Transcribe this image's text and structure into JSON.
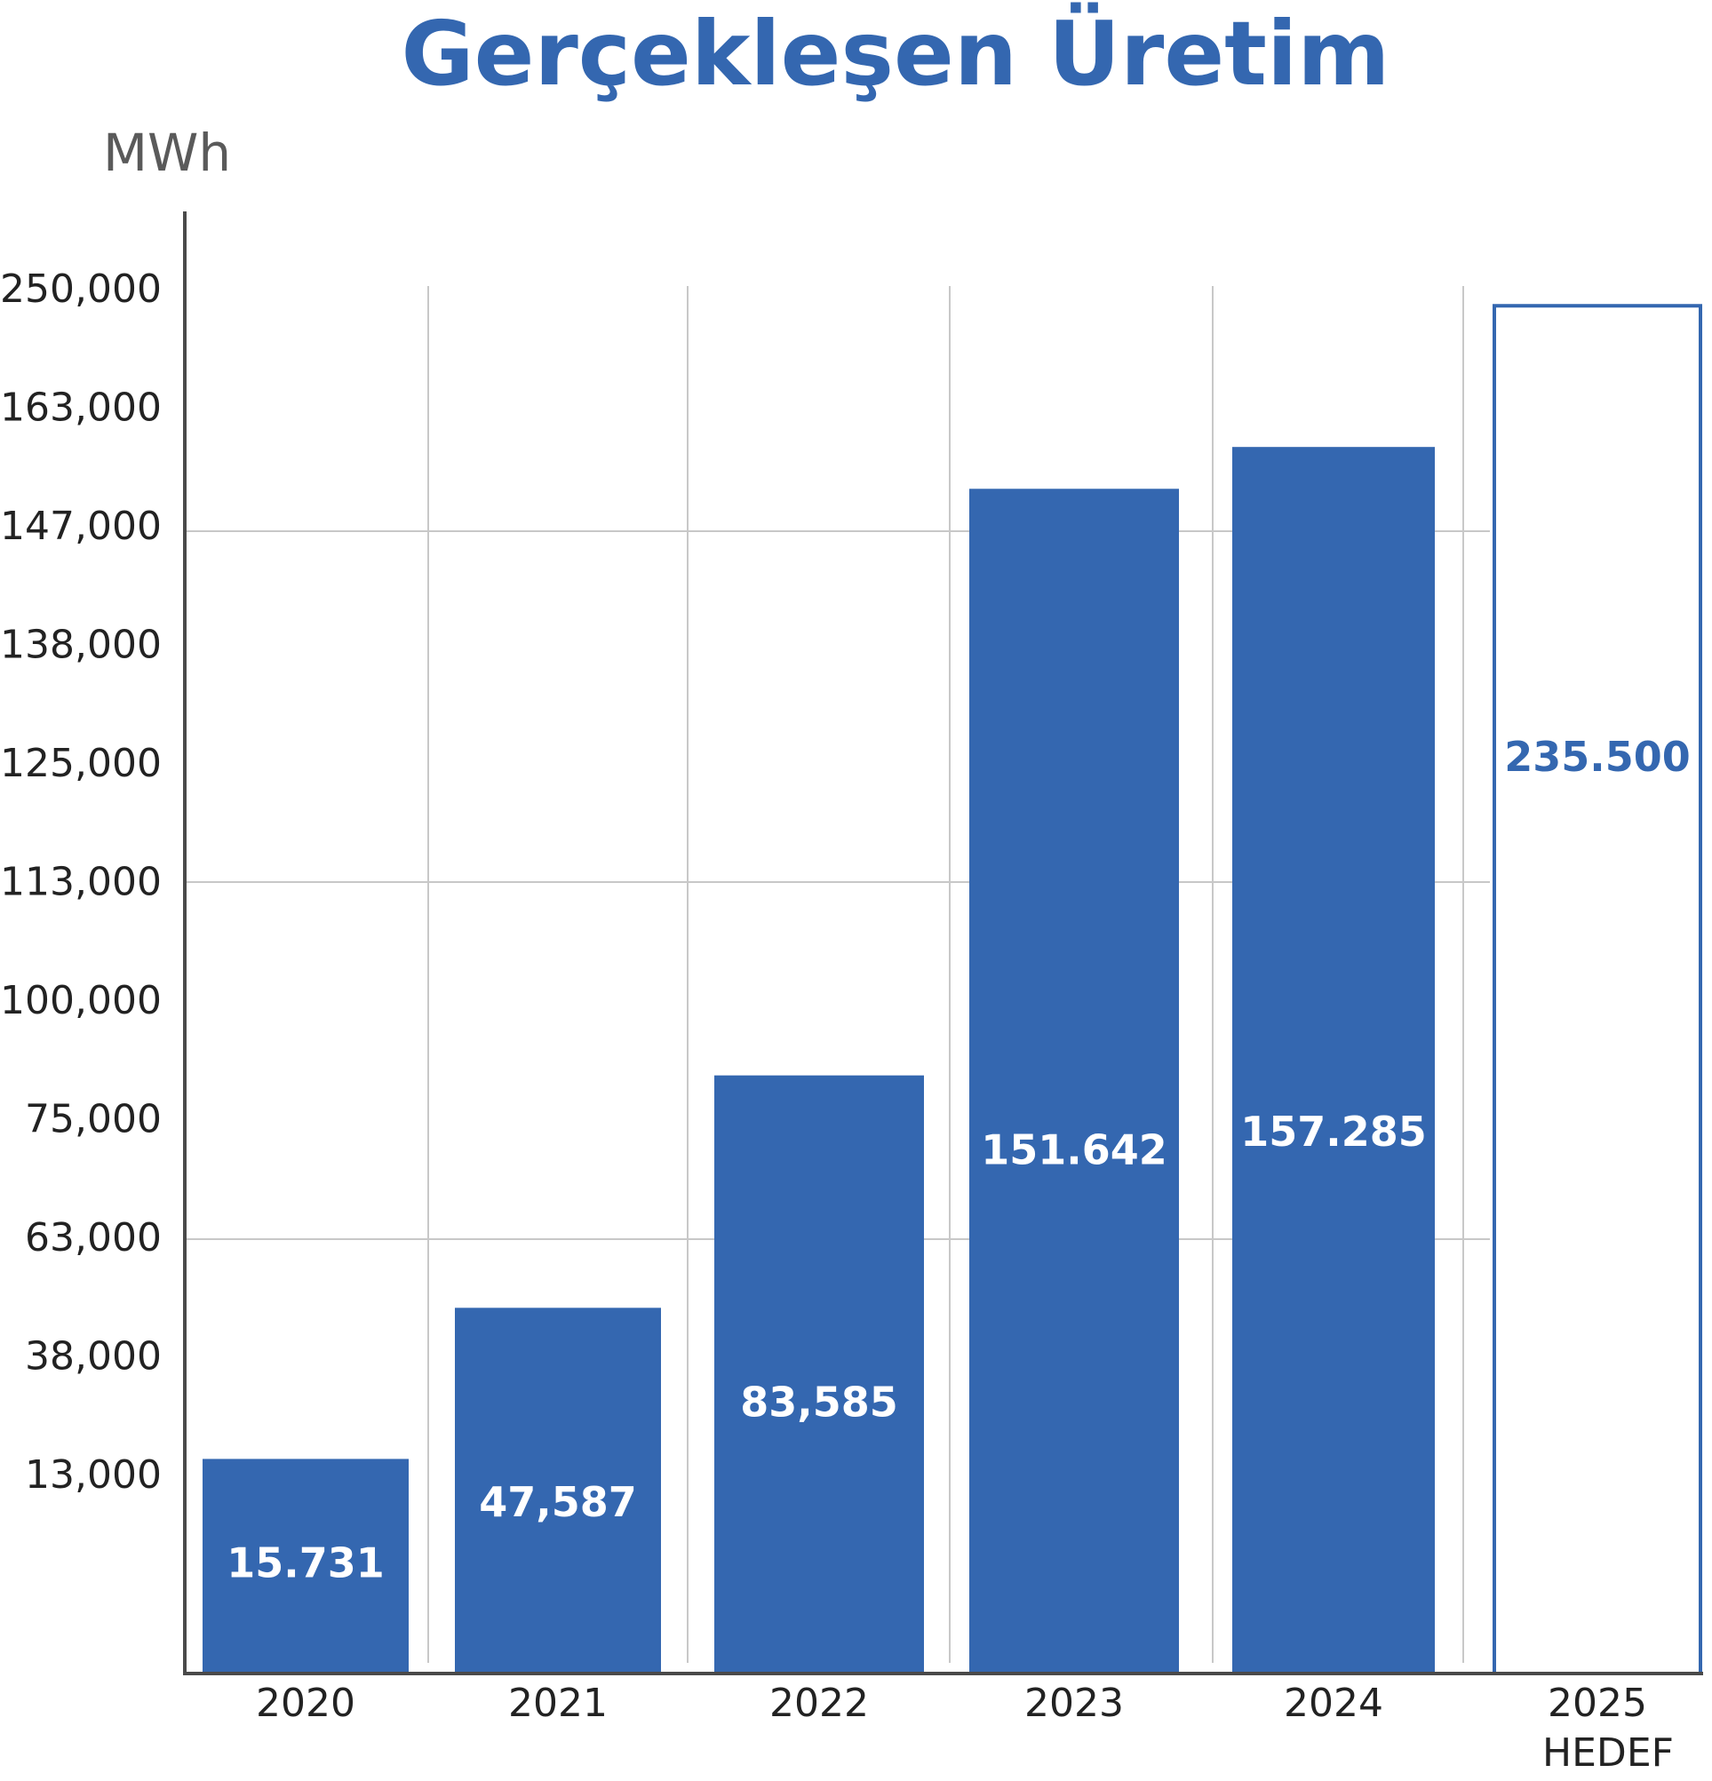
{
  "chart_data": {
    "type": "bar",
    "title": "Gerçekleşen Üretim",
    "ylabel": "MWh",
    "xlabel": "",
    "y_ticks": [
      "250,000",
      "163,000",
      "147,000",
      "138,000",
      "125,000",
      "113,000",
      "100,000",
      "75,000",
      "63,000",
      "38,000",
      "13,000"
    ],
    "y_scale": "ordinal-ticks",
    "categories": [
      {
        "label": "2020",
        "sublabel": ""
      },
      {
        "label": "2021",
        "sublabel": ""
      },
      {
        "label": "2022",
        "sublabel": ""
      },
      {
        "label": "2023",
        "sublabel": ""
      },
      {
        "label": "2024",
        "sublabel": ""
      },
      {
        "label": "2025",
        "sublabel": "HEDEF"
      }
    ],
    "values": [
      15731,
      47587,
      83585,
      151642,
      157285,
      235500
    ],
    "value_labels": [
      "15.731",
      "47,587",
      "83,585",
      "151.642",
      "157.285",
      "235.500"
    ],
    "bar_styles": [
      "filled",
      "filled",
      "filled",
      "filled",
      "filled",
      "outline"
    ],
    "grid": true,
    "colors": {
      "bar": "#3467b0",
      "bar_label": "#ffffff",
      "outline_label": "#3467b0",
      "grid": "#c8c8c8",
      "axis": "#4a4a4a"
    }
  }
}
